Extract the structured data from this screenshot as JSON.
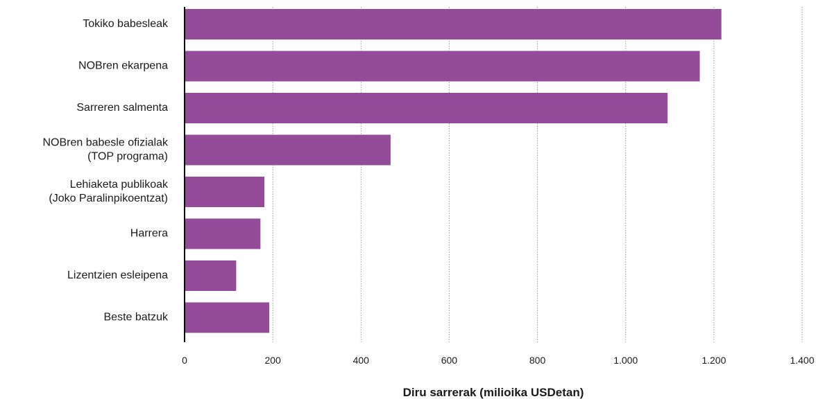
{
  "chart_data": {
    "type": "bar",
    "orientation": "horizontal",
    "categories": [
      [
        "Tokiko babesleak"
      ],
      [
        "NOBren ekarpena"
      ],
      [
        "Sarreren salmenta"
      ],
      [
        "NOBren babesle ofizialak",
        "(TOP programa)"
      ],
      [
        "Lehiaketa publikoak",
        "(Joko Paralinpikoentzat)"
      ],
      [
        "Harrera"
      ],
      [
        "Lizentzien esleipena"
      ],
      [
        "Beste batzuk"
      ]
    ],
    "values": [
      1217,
      1168,
      1095,
      467,
      181,
      172,
      117,
      192
    ],
    "xlabel": "Diru sarrerak (milioika USDetan)",
    "xlim": [
      0,
      1400
    ],
    "xticks": [
      0,
      200,
      400,
      600,
      800,
      1000,
      1200,
      1400
    ],
    "xtick_labels": [
      "0",
      "200",
      "400",
      "600",
      "800",
      "1.000",
      "1.200",
      "1.400"
    ],
    "grid": "vertical-dotted",
    "bar_color": "#944b99"
  }
}
